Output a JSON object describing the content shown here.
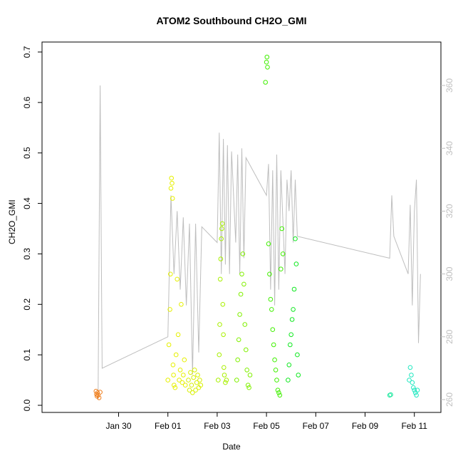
{
  "chart_data": {
    "type": "scatter",
    "title": "ATOM2 Southbound CH2O_GMI",
    "xlabel": "Date",
    "ylabel": "CH2O_GMI",
    "xlim": [
      "2017-01-27T12:00",
      "2017-02-11T12:00"
    ],
    "ylim": [
      0,
      0.7
    ],
    "y_ticks": [
      0.0,
      0.1,
      0.2,
      0.3,
      0.4,
      0.5,
      0.6,
      0.7
    ],
    "y_tick_labels": [
      "0.0",
      "0.1",
      "0.2",
      "0.3",
      "0.4",
      "0.5",
      "0.6",
      "0.7"
    ],
    "x_ticks": [
      "2017-01-30",
      "2017-02-01",
      "2017-02-03",
      "2017-02-05",
      "2017-02-07",
      "2017-02-09",
      "2017-02-11"
    ],
    "x_tick_labels": [
      "Jan 30",
      "Feb 01",
      "Feb 03",
      "Feb 05",
      "Feb 07",
      "Feb 09",
      "Feb 11"
    ],
    "y2_ticks": [
      260,
      280,
      300,
      320,
      340,
      360
    ],
    "y2_tick_labels": [
      "260",
      "280",
      "300",
      "320",
      "340",
      "360"
    ],
    "y2_lim": [
      255,
      364
    ],
    "grid": false,
    "marker": "open-circle",
    "series": [
      {
        "color": "#F08020",
        "points": [
          [
            "2017-01-29T02:00",
            0.028
          ],
          [
            "2017-01-29T02:30",
            0.022
          ],
          [
            "2017-01-29T03:00",
            0.018
          ],
          [
            "2017-01-29T03:30",
            0.025
          ],
          [
            "2017-01-29T04:00",
            0.02
          ],
          [
            "2017-01-29T05:00",
            0.015
          ],
          [
            "2017-01-29T06:00",
            0.026
          ]
        ]
      },
      {
        "color": "#E6F000",
        "points": [
          [
            "2017-02-01T00:00",
            0.05
          ],
          [
            "2017-02-01T01:00",
            0.12
          ],
          [
            "2017-02-01T02:00",
            0.19
          ],
          [
            "2017-02-01T02:30",
            0.26
          ],
          [
            "2017-02-01T03:00",
            0.43
          ],
          [
            "2017-02-01T03:30",
            0.45
          ],
          [
            "2017-02-01T04:00",
            0.44
          ],
          [
            "2017-02-01T04:30",
            0.41
          ],
          [
            "2017-02-01T05:00",
            0.08
          ],
          [
            "2017-02-01T05:30",
            0.06
          ],
          [
            "2017-02-01T06:00",
            0.04
          ],
          [
            "2017-02-01T07:00",
            0.035
          ],
          [
            "2017-02-01T08:00",
            0.1
          ],
          [
            "2017-02-01T09:00",
            0.25
          ],
          [
            "2017-02-01T10:00",
            0.14
          ],
          [
            "2017-02-01T11:00",
            0.05
          ],
          [
            "2017-02-01T12:00",
            0.07
          ],
          [
            "2017-02-01T13:00",
            0.2
          ],
          [
            "2017-02-01T14:00",
            0.045
          ],
          [
            "2017-02-01T15:00",
            0.06
          ],
          [
            "2017-02-01T16:00",
            0.09
          ],
          [
            "2017-02-01T17:00",
            0.04
          ]
        ]
      },
      {
        "color": "#D8F000",
        "points": [
          [
            "2017-02-01T20:00",
            0.05
          ],
          [
            "2017-02-01T21:00",
            0.03
          ],
          [
            "2017-02-01T22:00",
            0.065
          ],
          [
            "2017-02-01T23:00",
            0.04
          ],
          [
            "2017-02-02T00:00",
            0.025
          ],
          [
            "2017-02-02T01:00",
            0.055
          ],
          [
            "2017-02-02T02:00",
            0.07
          ],
          [
            "2017-02-02T03:00",
            0.03
          ],
          [
            "2017-02-02T04:00",
            0.045
          ],
          [
            "2017-02-02T05:00",
            0.06
          ],
          [
            "2017-02-02T06:00",
            0.035
          ],
          [
            "2017-02-02T07:00",
            0.05
          ],
          [
            "2017-02-02T08:00",
            0.04
          ]
        ]
      },
      {
        "color": "#A8F000",
        "points": [
          [
            "2017-02-03T01:00",
            0.05
          ],
          [
            "2017-02-03T02:00",
            0.1
          ],
          [
            "2017-02-03T02:30",
            0.16
          ],
          [
            "2017-02-03T03:00",
            0.25
          ],
          [
            "2017-02-03T03:30",
            0.29
          ],
          [
            "2017-02-03T04:00",
            0.33
          ],
          [
            "2017-02-03T04:30",
            0.35
          ],
          [
            "2017-02-03T05:00",
            0.36
          ],
          [
            "2017-02-03T05:30",
            0.2
          ],
          [
            "2017-02-03T06:00",
            0.14
          ],
          [
            "2017-02-03T06:30",
            0.075
          ],
          [
            "2017-02-03T07:00",
            0.06
          ],
          [
            "2017-02-03T08:00",
            0.045
          ],
          [
            "2017-02-03T09:00",
            0.05
          ]
        ]
      },
      {
        "color": "#80F000",
        "points": [
          [
            "2017-02-03T19:00",
            0.05
          ],
          [
            "2017-02-03T20:00",
            0.09
          ],
          [
            "2017-02-03T21:00",
            0.13
          ],
          [
            "2017-02-03T22:00",
            0.18
          ],
          [
            "2017-02-03T23:00",
            0.22
          ],
          [
            "2017-02-04T00:00",
            0.26
          ],
          [
            "2017-02-04T01:00",
            0.3
          ],
          [
            "2017-02-04T02:00",
            0.24
          ],
          [
            "2017-02-04T03:00",
            0.16
          ],
          [
            "2017-02-04T04:00",
            0.11
          ],
          [
            "2017-02-04T05:00",
            0.07
          ],
          [
            "2017-02-04T06:00",
            0.04
          ],
          [
            "2017-02-04T07:00",
            0.035
          ],
          [
            "2017-02-04T08:00",
            0.06
          ]
        ]
      },
      {
        "color": "#40F000",
        "points": [
          [
            "2017-02-04T23:00",
            0.64
          ],
          [
            "2017-02-05T00:00",
            0.68
          ],
          [
            "2017-02-05T00:30",
            0.69
          ],
          [
            "2017-02-05T01:00",
            0.67
          ],
          [
            "2017-02-05T02:00",
            0.32
          ],
          [
            "2017-02-05T03:00",
            0.26
          ],
          [
            "2017-02-05T04:00",
            0.21
          ],
          [
            "2017-02-05T05:00",
            0.19
          ],
          [
            "2017-02-05T06:00",
            0.15
          ],
          [
            "2017-02-05T07:00",
            0.12
          ],
          [
            "2017-02-05T08:00",
            0.09
          ],
          [
            "2017-02-05T09:00",
            0.07
          ],
          [
            "2017-02-05T10:00",
            0.05
          ],
          [
            "2017-02-05T11:00",
            0.03
          ],
          [
            "2017-02-05T12:00",
            0.025
          ],
          [
            "2017-02-05T13:00",
            0.02
          ],
          [
            "2017-02-05T14:00",
            0.27
          ],
          [
            "2017-02-05T15:00",
            0.35
          ],
          [
            "2017-02-05T16:00",
            0.3
          ]
        ]
      },
      {
        "color": "#10E820",
        "points": [
          [
            "2017-02-05T21:00",
            0.05
          ],
          [
            "2017-02-05T22:00",
            0.08
          ],
          [
            "2017-02-05T23:00",
            0.12
          ],
          [
            "2017-02-06T00:00",
            0.14
          ],
          [
            "2017-02-06T01:00",
            0.17
          ],
          [
            "2017-02-06T02:00",
            0.19
          ],
          [
            "2017-02-06T03:00",
            0.23
          ],
          [
            "2017-02-06T04:00",
            0.33
          ],
          [
            "2017-02-06T05:00",
            0.28
          ],
          [
            "2017-02-06T06:00",
            0.1
          ],
          [
            "2017-02-06T07:00",
            0.06
          ]
        ]
      },
      {
        "color": "#20E8A0",
        "points": [
          [
            "2017-02-10T00:00",
            0.02
          ],
          [
            "2017-02-10T01:00",
            0.021
          ]
        ]
      },
      {
        "color": "#20E8C0",
        "points": [
          [
            "2017-02-10T19:00",
            0.05
          ],
          [
            "2017-02-10T20:00",
            0.075
          ],
          [
            "2017-02-10T21:00",
            0.06
          ],
          [
            "2017-02-10T22:00",
            0.045
          ],
          [
            "2017-02-10T23:00",
            0.035
          ],
          [
            "2017-02-11T00:00",
            0.03
          ],
          [
            "2017-02-11T01:00",
            0.025
          ],
          [
            "2017-02-11T02:00",
            0.02
          ],
          [
            "2017-02-11T03:00",
            0.03
          ]
        ]
      }
    ],
    "secondary_line": {
      "color": "#BEBEBE",
      "points": [
        [
          "2017-01-29T04:00",
          260
        ],
        [
          "2017-01-29T06:00",
          360
        ],
        [
          "2017-01-29T08:00",
          270
        ],
        [
          "2017-02-01T00:00",
          280
        ],
        [
          "2017-02-01T03:00",
          325
        ],
        [
          "2017-02-01T06:00",
          300
        ],
        [
          "2017-02-01T09:00",
          320
        ],
        [
          "2017-02-01T12:00",
          295
        ],
        [
          "2017-02-01T15:00",
          318
        ],
        [
          "2017-02-01T18:00",
          290
        ],
        [
          "2017-02-01T21:00",
          316
        ],
        [
          "2017-02-02T00:00",
          268
        ],
        [
          "2017-02-02T03:00",
          316
        ],
        [
          "2017-02-02T06:00",
          275
        ],
        [
          "2017-02-02T09:00",
          315
        ],
        [
          "2017-02-03T00:00",
          310
        ],
        [
          "2017-02-03T02:00",
          345
        ],
        [
          "2017-02-03T04:00",
          300
        ],
        [
          "2017-02-03T06:00",
          343
        ],
        [
          "2017-02-03T08:00",
          303
        ],
        [
          "2017-02-03T10:00",
          341
        ],
        [
          "2017-02-03T12:00",
          300
        ],
        [
          "2017-02-03T14:00",
          339
        ],
        [
          "2017-02-03T18:00",
          310
        ],
        [
          "2017-02-03T20:00",
          338
        ],
        [
          "2017-02-03T22:00",
          300
        ],
        [
          "2017-02-04T00:00",
          340
        ],
        [
          "2017-02-04T02:00",
          305
        ],
        [
          "2017-02-04T04:00",
          337
        ],
        [
          "2017-02-05T00:00",
          325
        ],
        [
          "2017-02-05T02:00",
          335
        ],
        [
          "2017-02-05T04:00",
          295
        ],
        [
          "2017-02-05T06:00",
          333
        ],
        [
          "2017-02-05T08:00",
          290
        ],
        [
          "2017-02-05T10:00",
          338
        ],
        [
          "2017-02-05T12:00",
          295
        ],
        [
          "2017-02-05T14:00",
          333
        ],
        [
          "2017-02-05T18:00",
          300
        ],
        [
          "2017-02-05T20:00",
          330
        ],
        [
          "2017-02-05T22:00",
          320
        ],
        [
          "2017-02-06T00:00",
          333
        ],
        [
          "2017-02-06T02:00",
          310
        ],
        [
          "2017-02-06T04:00",
          330
        ],
        [
          "2017-02-06T06:00",
          312
        ],
        [
          "2017-02-10T00:00",
          305
        ],
        [
          "2017-02-10T02:00",
          325
        ],
        [
          "2017-02-10T04:00",
          312
        ],
        [
          "2017-02-10T18:00",
          300
        ],
        [
          "2017-02-10T20:00",
          322
        ],
        [
          "2017-02-10T22:00",
          290
        ],
        [
          "2017-02-11T00:00",
          320
        ],
        [
          "2017-02-11T02:00",
          330
        ],
        [
          "2017-02-11T04:00",
          278
        ],
        [
          "2017-02-11T06:00",
          300
        ]
      ]
    }
  }
}
